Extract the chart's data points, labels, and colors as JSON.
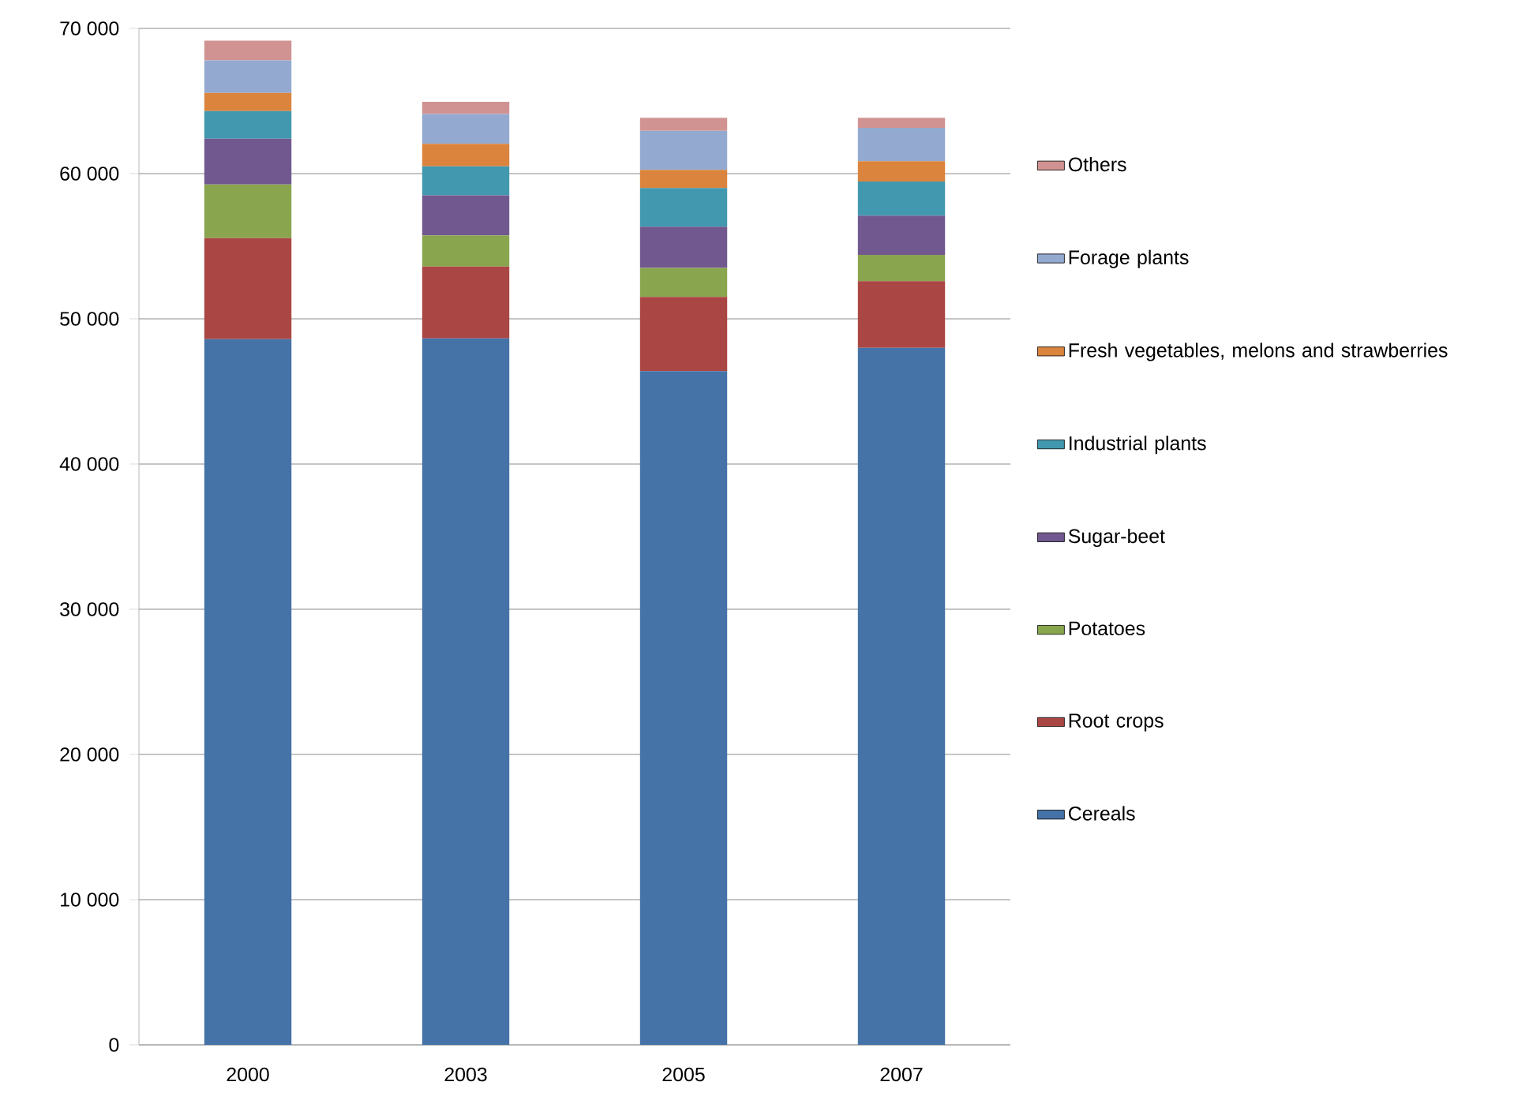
{
  "chart_data": {
    "type": "bar",
    "stacked": true,
    "categories": [
      "2000",
      "2003",
      "2005",
      "2007"
    ],
    "series": [
      {
        "name": "Cereals",
        "color": "#4572a7",
        "values": [
          48600,
          48650,
          46400,
          48000
        ]
      },
      {
        "name": "Root crops",
        "color": "#aa4643",
        "values": [
          6950,
          4950,
          5100,
          4600
        ]
      },
      {
        "name": "Potatoes",
        "color": "#89a54e",
        "values": [
          3700,
          2150,
          2000,
          1800
        ]
      },
      {
        "name": "Sugar-beet",
        "color": "#71588f",
        "values": [
          3150,
          2750,
          2850,
          2700
        ]
      },
      {
        "name": "Industrial plants",
        "color": "#4198af",
        "values": [
          1900,
          2000,
          2650,
          2350
        ]
      },
      {
        "name": "Fresh vegetables, melons and strawberries",
        "color": "#db843d",
        "values": [
          1250,
          1550,
          1250,
          1400
        ]
      },
      {
        "name": "Forage plants",
        "color": "#93a9cf",
        "values": [
          2250,
          2050,
          2700,
          2300
        ]
      },
      {
        "name": "Others",
        "color": "#d19392",
        "values": [
          1350,
          850,
          900,
          700
        ]
      }
    ],
    "ylim": [
      0,
      70000
    ],
    "yticks": [
      {
        "value": 0,
        "label": "0"
      },
      {
        "value": 10000,
        "label": "10 000"
      },
      {
        "value": 20000,
        "label": "20 000"
      },
      {
        "value": 30000,
        "label": "30 000"
      },
      {
        "value": 40000,
        "label": "40 000"
      },
      {
        "value": 50000,
        "label": "50 000"
      },
      {
        "value": 60000,
        "label": "60 000"
      },
      {
        "value": 70000,
        "label": "70 000"
      }
    ],
    "grid": "y",
    "legend": "right"
  }
}
